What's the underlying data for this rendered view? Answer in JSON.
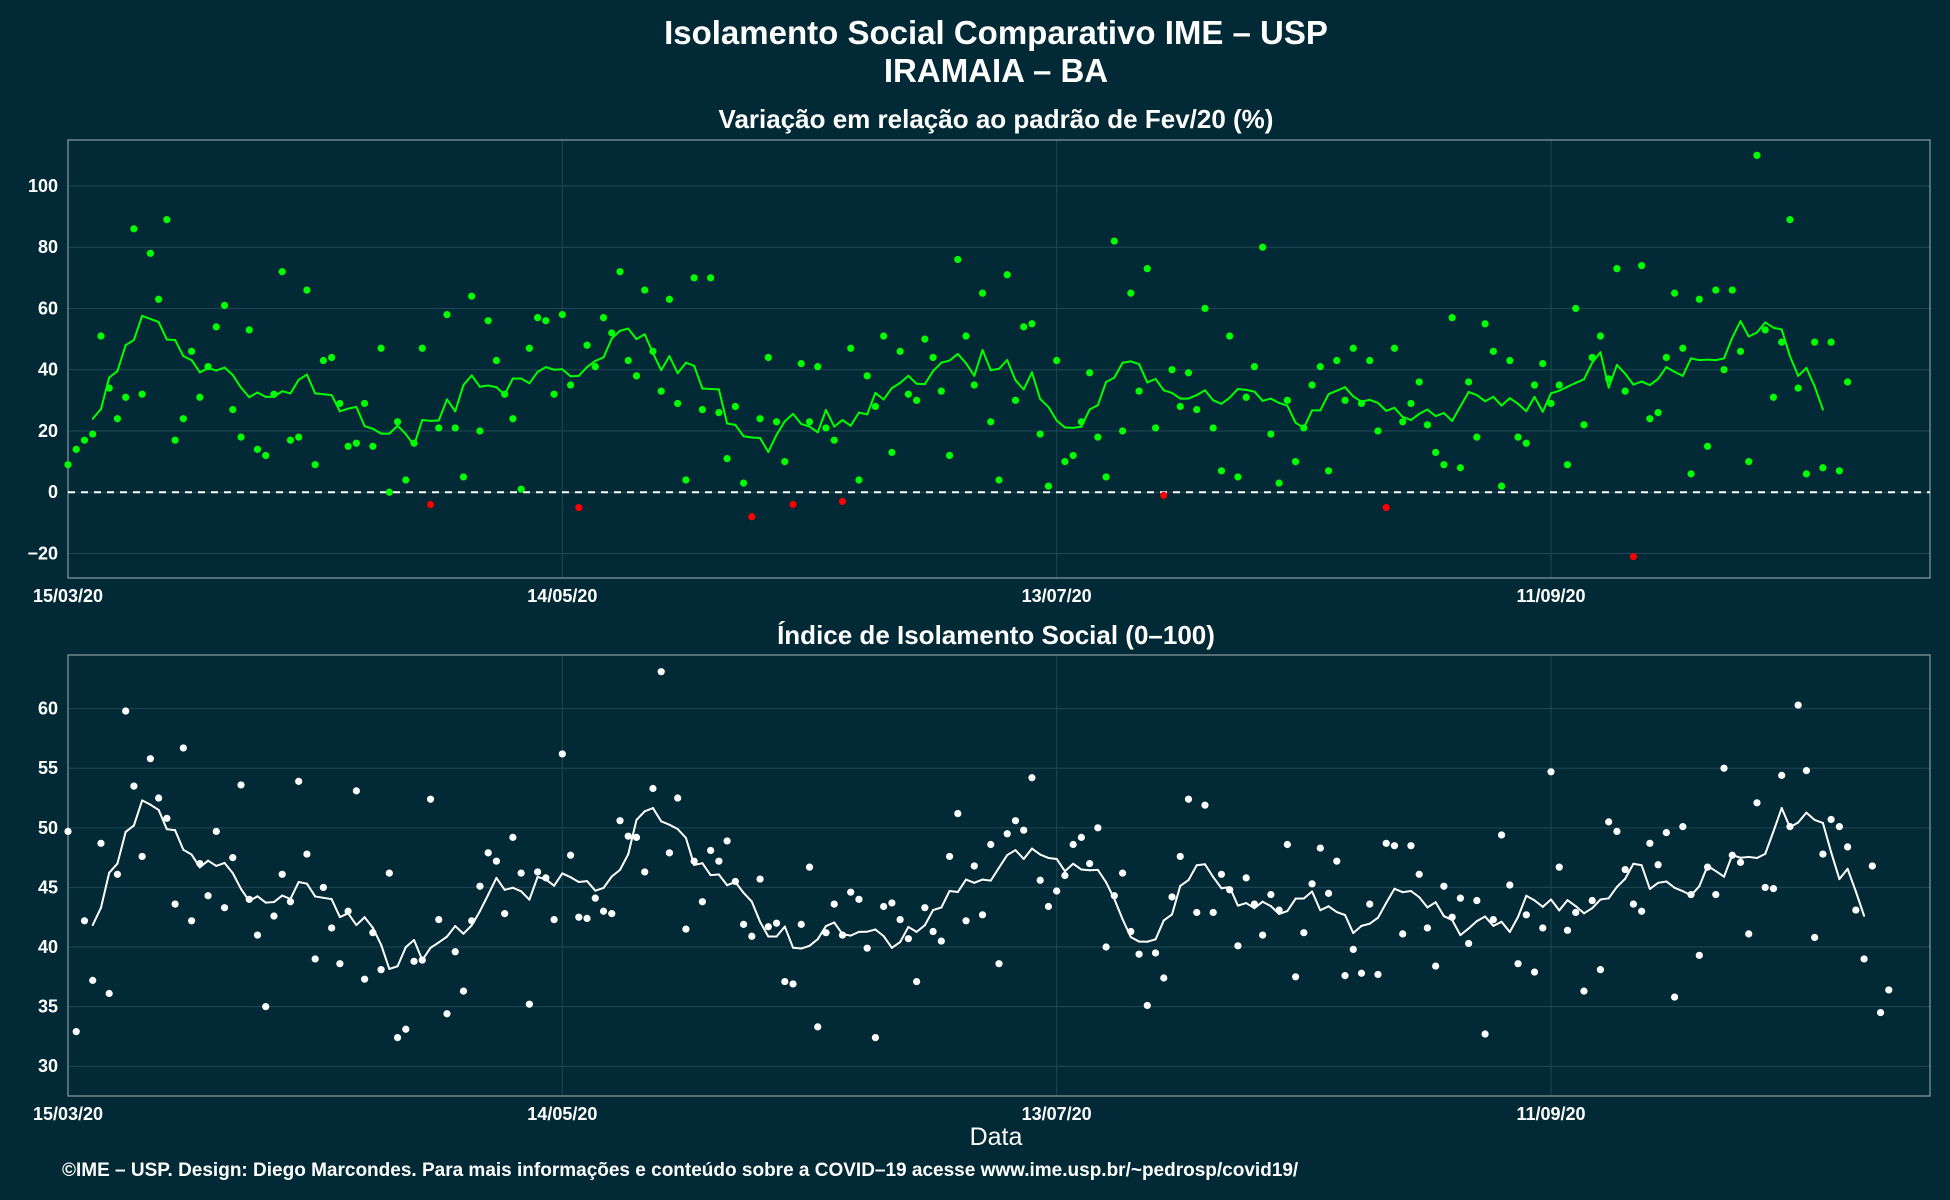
{
  "title_line1": "Isolamento Social Comparativo IME – USP",
  "title_line2": "IRAMAIA – BA",
  "footer": "©IME – USP. Design: Diego Marcondes. Para mais informações e conteúdo sobre a COVID–19 acesse www.ime.usp.br/~pedrosp/covid19/",
  "colors": {
    "background": "#022a36",
    "panel_border": "#8a9aa0",
    "grid": "#1e4654",
    "positive": "#00ff00",
    "negative": "#ff0000",
    "index": "#ffffff"
  },
  "chart_data": [
    {
      "type": "scatter",
      "title": "Variação em relação ao padrão de Fev/20 (%)",
      "xlabel": "",
      "ylabel": "",
      "x_start": "15/03/20",
      "x_end": "27/10/20",
      "x_ticks": [
        "15/03/20",
        "14/05/20",
        "13/07/20",
        "11/09/20"
      ],
      "y_ticks": [
        "-20",
        "0",
        "20",
        "40",
        "60",
        "80",
        "100"
      ],
      "ylim": [
        -28,
        115
      ],
      "reference_line": 0,
      "moving_average": "7-day",
      "grid": true,
      "values": [
        9,
        14,
        17,
        19,
        51,
        34,
        24,
        31,
        86,
        32,
        78,
        63,
        89,
        17,
        24,
        46,
        31,
        41,
        54,
        61,
        27,
        18,
        53,
        14,
        12,
        32,
        72,
        17,
        18,
        66,
        9,
        43,
        44,
        29,
        15,
        16,
        29,
        15,
        47,
        0,
        23,
        4,
        16,
        47,
        -4,
        21,
        58,
        21,
        5,
        64,
        20,
        56,
        43,
        32,
        24,
        1,
        47,
        57,
        56,
        32,
        58,
        35,
        -5,
        48,
        41,
        57,
        52,
        72,
        43,
        38,
        66,
        46,
        33,
        63,
        29,
        4,
        70,
        27,
        70,
        26,
        11,
        28,
        3,
        -8,
        24,
        44,
        23,
        10,
        -4,
        42,
        23,
        41,
        21,
        17,
        -3,
        47,
        4,
        38,
        28,
        51,
        13,
        46,
        32,
        30,
        50,
        44,
        33,
        12,
        76,
        51,
        35,
        65,
        23,
        4,
        71,
        30,
        54,
        55,
        19,
        2,
        43,
        10,
        12,
        23,
        39,
        18,
        5,
        82,
        20,
        65,
        33,
        73,
        21,
        -1,
        40,
        28,
        39,
        27,
        60,
        21,
        7,
        51,
        5,
        31,
        41,
        80,
        19,
        3,
        30,
        10,
        21,
        35,
        41,
        7,
        43,
        30,
        47,
        29,
        43,
        20,
        -5,
        47,
        23,
        29,
        36,
        22,
        13,
        9,
        57,
        8,
        36,
        18,
        55,
        46,
        2,
        43,
        18,
        16,
        35,
        42,
        29,
        35,
        9,
        60,
        22,
        44,
        51,
        37,
        73,
        33,
        -21,
        74,
        24,
        26,
        44,
        65,
        47,
        6,
        63,
        15,
        66,
        40,
        66,
        46,
        10,
        110,
        53,
        31,
        49,
        89,
        34,
        6,
        49,
        8,
        49,
        7,
        36
      ]
    },
    {
      "type": "scatter",
      "title": "Índice de Isolamento Social (0–100)",
      "xlabel": "Data",
      "ylabel": "",
      "x_start": "15/03/20",
      "x_end": "27/10/20",
      "x_ticks": [
        "15/03/20",
        "14/05/20",
        "13/07/20",
        "11/09/20"
      ],
      "y_ticks": [
        "30",
        "35",
        "40",
        "45",
        "50",
        "55",
        "60"
      ],
      "ylim": [
        27.5,
        64.5
      ],
      "moving_average": "7-day",
      "grid": true,
      "values": [
        49.7,
        32.9,
        42.2,
        37.2,
        48.7,
        36.1,
        46.1,
        59.8,
        53.5,
        47.6,
        55.8,
        52.5,
        50.8,
        43.6,
        56.7,
        42.2,
        47,
        44.3,
        49.7,
        43.3,
        47.5,
        53.6,
        44,
        41,
        35,
        42.6,
        46.1,
        43.8,
        53.9,
        47.8,
        39,
        45,
        41.6,
        38.6,
        43,
        53.1,
        37.3,
        41.2,
        38.1,
        46.2,
        32.4,
        33.1,
        38.8,
        38.9,
        52.4,
        42.3,
        34.4,
        39.6,
        36.3,
        42.2,
        45.1,
        47.9,
        47.2,
        42.8,
        49.2,
        46.2,
        35.2,
        46.3,
        45.8,
        42.3,
        56.2,
        47.7,
        42.5,
        42.4,
        44.1,
        43,
        42.8,
        50.6,
        49.3,
        49.2,
        46.3,
        53.3,
        63.1,
        47.9,
        52.5,
        41.5,
        47.2,
        43.8,
        48.1,
        47.2,
        48.9,
        45.5,
        41.9,
        40.9,
        45.7,
        41.7,
        42,
        37.1,
        36.9,
        41.9,
        46.7,
        33.3,
        41.2,
        43.6,
        41,
        44.6,
        44,
        39.9,
        32.4,
        43.4,
        43.7,
        42.3,
        40.7,
        37.1,
        43.3,
        41.3,
        40.5,
        47.6,
        51.2,
        42.2,
        46.8,
        42.7,
        48.6,
        38.6,
        49.5,
        50.6,
        49.8,
        54.2,
        45.6,
        43.4,
        44.7,
        46,
        48.6,
        49.2,
        47,
        50,
        40,
        44.3,
        46.2,
        41.3,
        39.4,
        35.1,
        39.5,
        37.4,
        44.2,
        47.6,
        52.4,
        42.9,
        51.9,
        42.9,
        46.1,
        44.8,
        40.1,
        45.8,
        43.6,
        41,
        44.4,
        43.1,
        48.6,
        37.5,
        41.2,
        45.3,
        48.3,
        44.5,
        47.2,
        37.6,
        39.8,
        37.8,
        43.6,
        37.7,
        48.7,
        48.5,
        41.1,
        48.5,
        46.1,
        41.6,
        38.4,
        45.1,
        42.5,
        44.1,
        40.3,
        43.9,
        32.7,
        42.3,
        49.4,
        45.2,
        38.6,
        42.7,
        37.9,
        41.6,
        54.7,
        46.7,
        41.4,
        42.9,
        36.3,
        43.9,
        38.1,
        50.5,
        49.7,
        46.5,
        43.6,
        43,
        48.7,
        46.9,
        49.6,
        35.8,
        50.1,
        44.4,
        39.3,
        46.7,
        44.4,
        55,
        47.7,
        47.1,
        41.1,
        52.1,
        45,
        44.9,
        54.4,
        50.1,
        60.3,
        54.8,
        40.8,
        47.8,
        50.7,
        50.1,
        48.4,
        43.1,
        39,
        46.8,
        34.5,
        36.4
      ]
    }
  ]
}
